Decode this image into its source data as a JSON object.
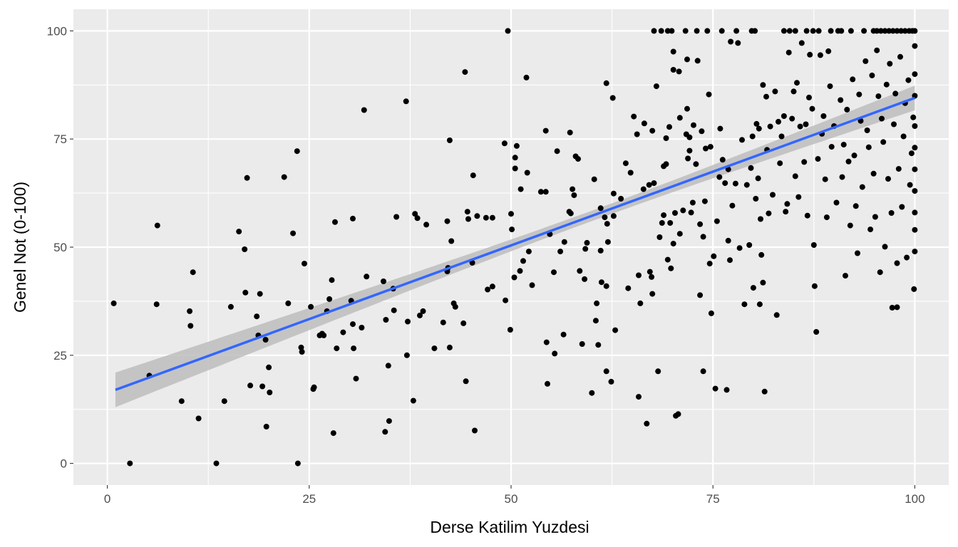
{
  "chart_data": {
    "type": "scatter",
    "title": "",
    "xlabel": "Derse Katilim Yuzdesi",
    "ylabel": "Genel Not (0-100)",
    "xlim": [
      -4.2,
      104.2
    ],
    "ylim": [
      -5,
      105
    ],
    "xticks": [
      0,
      25,
      50,
      75,
      100
    ],
    "yticks": [
      0,
      25,
      50,
      75,
      100
    ],
    "x_tick_labels": [
      "0",
      "25",
      "50",
      "75",
      "100"
    ],
    "y_tick_labels": [
      "0",
      "25",
      "50",
      "75",
      "100"
    ],
    "grid": true,
    "legend": "none",
    "colors": {
      "panel": "#ebebeb",
      "grid": "#ffffff",
      "points": "#000000",
      "trend": "#3366ff",
      "ribbon": "#bdbdbd"
    },
    "trend": {
      "method": "linear",
      "start": [
        1,
        17
      ],
      "end": [
        100,
        84.5
      ],
      "ci_halfwidth_ends": 4.0,
      "ci_halfwidth_center": 1.2,
      "ci_center_x": 60
    },
    "points": [
      [
        0.8,
        37
      ],
      [
        2.8,
        0
      ],
      [
        5.2,
        20.3
      ],
      [
        6.2,
        55
      ],
      [
        6.1,
        36.8
      ],
      [
        9.2,
        14.4
      ],
      [
        10.2,
        35.2
      ],
      [
        10.3,
        31.8
      ],
      [
        10.6,
        44.2
      ],
      [
        11.3,
        10.4
      ],
      [
        13.5,
        0
      ],
      [
        14.5,
        14.4
      ],
      [
        15.3,
        36.2
      ],
      [
        16.3,
        53.6
      ],
      [
        17,
        49.5
      ],
      [
        17.1,
        39.5
      ],
      [
        17.3,
        66
      ],
      [
        17.7,
        18
      ],
      [
        18.5,
        34
      ],
      [
        18.9,
        39.2
      ],
      [
        18.7,
        29.6
      ],
      [
        19.2,
        17.8
      ],
      [
        19.6,
        28.6
      ],
      [
        19.7,
        8.5
      ],
      [
        20,
        22.2
      ],
      [
        20.1,
        16.4
      ],
      [
        21.9,
        66.2
      ],
      [
        22.4,
        37
      ],
      [
        23,
        53.2
      ],
      [
        23.5,
        72.2
      ],
      [
        23.6,
        0
      ],
      [
        24,
        26.8
      ],
      [
        24.1,
        25.8
      ],
      [
        24.4,
        46.2
      ],
      [
        25.2,
        36.2
      ],
      [
        25.5,
        17.2
      ],
      [
        25.6,
        17.6
      ],
      [
        26.3,
        29.6
      ],
      [
        26.6,
        30
      ],
      [
        26.8,
        29.6
      ],
      [
        27.2,
        35.2
      ],
      [
        27.5,
        38
      ],
      [
        27.8,
        42.4
      ],
      [
        28,
        7
      ],
      [
        28.4,
        26.6
      ],
      [
        28.2,
        55.8
      ],
      [
        29.2,
        30.3
      ],
      [
        30.2,
        37.6
      ],
      [
        30.4,
        56.6
      ],
      [
        30.5,
        26.6
      ],
      [
        30.4,
        32.2
      ],
      [
        30.8,
        19.6
      ],
      [
        31.5,
        31.4
      ],
      [
        31.8,
        81.7
      ],
      [
        32.1,
        43.2
      ],
      [
        34.2,
        42.1
      ],
      [
        34.4,
        7.3
      ],
      [
        34.5,
        33.2
      ],
      [
        34.8,
        22.6
      ],
      [
        34.9,
        9.8
      ],
      [
        35.4,
        40.4
      ],
      [
        35.5,
        35.4
      ],
      [
        35.8,
        57
      ],
      [
        37,
        83.7
      ],
      [
        37.1,
        25
      ],
      [
        37.2,
        32.8
      ],
      [
        37.9,
        14.5
      ],
      [
        38.1,
        57.7
      ],
      [
        38.4,
        56.7
      ],
      [
        38.7,
        34.2
      ],
      [
        39.1,
        35.2
      ],
      [
        39.5,
        55.2
      ],
      [
        40.5,
        26.6
      ],
      [
        41.6,
        32.6
      ],
      [
        42.1,
        56
      ],
      [
        42.1,
        44.4
      ],
      [
        42.2,
        45.2
      ],
      [
        42.4,
        74.7
      ],
      [
        42.4,
        26.8
      ],
      [
        42.6,
        51.4
      ],
      [
        42.9,
        37
      ],
      [
        43.1,
        36.2
      ],
      [
        44.1,
        32.4
      ],
      [
        44.3,
        90.5
      ],
      [
        44.4,
        19
      ],
      [
        44.6,
        58.2
      ],
      [
        44.7,
        56.5
      ],
      [
        45.2,
        46.4
      ],
      [
        45.3,
        66.6
      ],
      [
        45.5,
        7.6
      ],
      [
        45.8,
        57.2
      ],
      [
        46.9,
        56.8
      ],
      [
        47.1,
        40.2
      ],
      [
        47.7,
        56.8
      ],
      [
        47.7,
        40.9
      ],
      [
        49.3,
        37.7
      ],
      [
        49.2,
        74
      ],
      [
        49.6,
        100
      ],
      [
        49.9,
        30.9
      ],
      [
        50.1,
        54.1
      ],
      [
        50,
        57.7
      ],
      [
        50.4,
        43
      ],
      [
        50.5,
        68.2
      ],
      [
        50.5,
        70.7
      ],
      [
        50.7,
        73.4
      ],
      [
        51.1,
        44.5
      ],
      [
        51.2,
        63.4
      ],
      [
        51.5,
        46.8
      ],
      [
        51.9,
        89.2
      ],
      [
        52,
        67.2
      ],
      [
        52.2,
        49
      ],
      [
        52.6,
        41.2
      ],
      [
        53.7,
        62.8
      ],
      [
        54.3,
        76.9
      ],
      [
        54.3,
        62.8
      ],
      [
        54.5,
        18.4
      ],
      [
        54.4,
        28
      ],
      [
        54.8,
        53
      ],
      [
        55.3,
        44.2
      ],
      [
        55.4,
        25.4
      ],
      [
        55.7,
        72.2
      ],
      [
        56.1,
        49
      ],
      [
        56.6,
        51.2
      ],
      [
        56.5,
        29.8
      ],
      [
        57.2,
        58.2
      ],
      [
        57.3,
        76.5
      ],
      [
        57.4,
        57.8
      ],
      [
        57.6,
        63.4
      ],
      [
        57.8,
        62
      ],
      [
        58,
        71
      ],
      [
        58.3,
        70.4
      ],
      [
        58.5,
        44.5
      ],
      [
        58.8,
        27.6
      ],
      [
        59.1,
        42.6
      ],
      [
        59.2,
        49.6
      ],
      [
        59.4,
        51
      ],
      [
        60,
        16.3
      ],
      [
        60.3,
        65.7
      ],
      [
        60.5,
        33
      ],
      [
        60.6,
        37
      ],
      [
        60.8,
        27.4
      ],
      [
        61.2,
        41.9
      ],
      [
        61.1,
        59
      ],
      [
        61.1,
        49.2
      ],
      [
        61.6,
        56.9
      ],
      [
        61.8,
        21.3
      ],
      [
        61.8,
        41
      ],
      [
        61.9,
        55.4
      ],
      [
        61.8,
        87.9
      ],
      [
        62,
        51.2
      ],
      [
        62.4,
        18.9
      ],
      [
        62.6,
        84.5
      ],
      [
        62.7,
        62.4
      ],
      [
        62.7,
        57.2
      ],
      [
        62.9,
        30.8
      ],
      [
        63.6,
        61.2
      ],
      [
        64.2,
        69.4
      ],
      [
        64.5,
        40.5
      ],
      [
        64.8,
        67.2
      ],
      [
        65.2,
        80.2
      ],
      [
        65.6,
        76.1
      ],
      [
        65.8,
        43.5
      ],
      [
        65.8,
        15.4
      ],
      [
        66,
        37
      ],
      [
        66.5,
        78.6
      ],
      [
        66.4,
        63.4
      ],
      [
        66.8,
        9.2
      ],
      [
        67.1,
        64.4
      ],
      [
        67.2,
        44.3
      ],
      [
        67.4,
        43.1
      ],
      [
        67.5,
        39.2
      ],
      [
        67.5,
        76.9
      ],
      [
        67.7,
        100
      ],
      [
        67.7,
        64.8
      ],
      [
        68,
        87.2
      ],
      [
        68.2,
        21.3
      ],
      [
        68.4,
        52.3
      ],
      [
        68.7,
        55.6
      ],
      [
        68.9,
        57.4
      ],
      [
        68.9,
        68.7
      ],
      [
        69.2,
        75.2
      ],
      [
        69.2,
        69.2
      ],
      [
        69.4,
        47.1
      ],
      [
        69.6,
        77.8
      ],
      [
        69.4,
        100
      ],
      [
        69.7,
        55.6
      ],
      [
        69.8,
        45.1
      ],
      [
        70.1,
        50.8
      ],
      [
        70.1,
        91
      ],
      [
        70.1,
        95.2
      ],
      [
        70.3,
        57.9
      ],
      [
        70.4,
        11
      ],
      [
        70.7,
        11.4
      ],
      [
        70.8,
        90.6
      ],
      [
        70.9,
        79.9
      ],
      [
        70.9,
        53.1
      ],
      [
        71.3,
        58.5
      ],
      [
        71.6,
        100
      ],
      [
        71.7,
        76.1
      ],
      [
        71.8,
        93.4
      ],
      [
        71.8,
        82
      ],
      [
        71.9,
        70.5
      ],
      [
        72.1,
        75.4
      ],
      [
        72.1,
        72.3
      ],
      [
        72.3,
        58
      ],
      [
        72.5,
        60.3
      ],
      [
        72.6,
        78.2
      ],
      [
        72.9,
        69.2
      ],
      [
        73,
        100
      ],
      [
        73.1,
        93.1
      ],
      [
        73.4,
        38.9
      ],
      [
        73.4,
        55.3
      ],
      [
        73.8,
        21.3
      ],
      [
        73.8,
        52.4
      ],
      [
        73.6,
        76.8
      ],
      [
        74,
        60.6
      ],
      [
        74.1,
        72.8
      ],
      [
        74.3,
        100
      ],
      [
        74.5,
        85.3
      ],
      [
        74.7,
        73.2
      ],
      [
        74.6,
        46.2
      ],
      [
        74.8,
        34.7
      ],
      [
        75.1,
        47.9
      ],
      [
        75.3,
        17.3
      ],
      [
        75.5,
        56
      ],
      [
        75.8,
        66.2
      ],
      [
        75.9,
        77.4
      ],
      [
        76.2,
        70.2
      ],
      [
        76.5,
        64.8
      ],
      [
        76.7,
        17
      ],
      [
        76.9,
        51.5
      ],
      [
        76.9,
        68
      ],
      [
        77.1,
        47
      ],
      [
        77.2,
        97.5
      ],
      [
        77.4,
        59.6
      ],
      [
        77.8,
        64.7
      ],
      [
        77.9,
        100
      ],
      [
        78.1,
        97.2
      ],
      [
        78.3,
        49.8
      ],
      [
        78.6,
        74.8
      ],
      [
        78.9,
        36.8
      ],
      [
        79.2,
        64.4
      ],
      [
        79.5,
        50.5
      ],
      [
        79.7,
        68.3
      ],
      [
        79.9,
        75.6
      ],
      [
        80,
        40.6
      ],
      [
        80.3,
        61.2
      ],
      [
        80.4,
        78.5
      ],
      [
        80.6,
        65.9
      ],
      [
        80.9,
        56.5
      ],
      [
        80.7,
        77.4
      ],
      [
        80.8,
        36.8
      ],
      [
        81,
        48.2
      ],
      [
        81.2,
        41.8
      ],
      [
        81.2,
        87.5
      ],
      [
        81.4,
        16.6
      ],
      [
        81.6,
        84.8
      ],
      [
        81.7,
        72.5
      ],
      [
        81.9,
        57.8
      ],
      [
        82.1,
        77.9
      ],
      [
        82.4,
        62.1
      ],
      [
        82.7,
        86
      ],
      [
        82.9,
        34.3
      ],
      [
        83.1,
        79
      ],
      [
        83.3,
        69.4
      ],
      [
        83.5,
        75.6
      ],
      [
        83.8,
        80.3
      ],
      [
        84,
        58.2
      ],
      [
        84.2,
        60
      ],
      [
        84.4,
        95
      ],
      [
        84.5,
        100
      ],
      [
        84.8,
        79.7
      ],
      [
        85,
        86
      ],
      [
        85.2,
        66.4
      ],
      [
        85.4,
        88
      ],
      [
        85.6,
        61.6
      ],
      [
        85.8,
        77.9
      ],
      [
        86,
        97.2
      ],
      [
        86.3,
        69.7
      ],
      [
        86.5,
        78.4
      ],
      [
        86.7,
        57.3
      ],
      [
        86.9,
        84.6
      ],
      [
        87,
        94.5
      ],
      [
        87.3,
        82
      ],
      [
        87.5,
        50.5
      ],
      [
        87.6,
        41
      ],
      [
        87.8,
        30.4
      ],
      [
        88,
        70.4
      ],
      [
        88.3,
        94.4
      ],
      [
        88.5,
        76.2
      ],
      [
        88.7,
        80.3
      ],
      [
        88.9,
        65.7
      ],
      [
        89.1,
        56.9
      ],
      [
        89.3,
        95.3
      ],
      [
        89.5,
        87.2
      ],
      [
        89.7,
        73.2
      ],
      [
        90,
        78
      ],
      [
        90.3,
        60.3
      ],
      [
        90.5,
        100
      ],
      [
        90.8,
        84
      ],
      [
        91,
        66.2
      ],
      [
        91.2,
        73.7
      ],
      [
        91.4,
        43.4
      ],
      [
        91.6,
        81.8
      ],
      [
        91.8,
        69.8
      ],
      [
        92,
        55
      ],
      [
        92.3,
        88.8
      ],
      [
        92.5,
        71.2
      ],
      [
        92.7,
        59.5
      ],
      [
        92.9,
        48.6
      ],
      [
        93.1,
        85.3
      ],
      [
        93.3,
        79.2
      ],
      [
        93.5,
        63.9
      ],
      [
        93.7,
        100
      ],
      [
        93.9,
        93
      ],
      [
        94.1,
        77
      ],
      [
        94.3,
        73.1
      ],
      [
        94.5,
        54.1
      ],
      [
        94.7,
        89.7
      ],
      [
        94.9,
        67
      ],
      [
        95.1,
        57
      ],
      [
        95.3,
        95.5
      ],
      [
        95.5,
        84.9
      ],
      [
        95.7,
        44.2
      ],
      [
        95.9,
        79.7
      ],
      [
        96.1,
        74.3
      ],
      [
        96.3,
        50.1
      ],
      [
        96.5,
        87.6
      ],
      [
        96.7,
        65.8
      ],
      [
        96.9,
        92.4
      ],
      [
        97.1,
        57.9
      ],
      [
        97.2,
        36
      ],
      [
        97.4,
        78.4
      ],
      [
        97.6,
        85.5
      ],
      [
        97.8,
        46.3
      ],
      [
        97.8,
        36.1
      ],
      [
        98,
        68.1
      ],
      [
        98.2,
        94
      ],
      [
        98.4,
        59.3
      ],
      [
        98.6,
        75.6
      ],
      [
        98.8,
        83.3
      ],
      [
        99,
        47.6
      ],
      [
        99.2,
        88.6
      ],
      [
        99.4,
        64.4
      ],
      [
        99.6,
        71.7
      ],
      [
        99.8,
        80
      ],
      [
        99.9,
        40.3
      ],
      [
        100,
        96.5
      ],
      [
        100,
        90
      ],
      [
        100,
        85
      ],
      [
        100,
        78
      ],
      [
        100,
        73
      ],
      [
        100,
        68
      ],
      [
        100,
        63
      ],
      [
        100,
        58
      ],
      [
        100,
        54
      ],
      [
        100,
        49
      ],
      [
        100,
        100
      ],
      [
        99.7,
        100
      ],
      [
        99.3,
        100
      ],
      [
        98.8,
        100
      ],
      [
        98.3,
        100
      ],
      [
        97.8,
        100
      ],
      [
        97.3,
        100
      ],
      [
        96.8,
        100
      ],
      [
        96.3,
        100
      ],
      [
        95.8,
        100
      ],
      [
        95.3,
        100
      ],
      [
        94.9,
        100
      ],
      [
        92.1,
        100
      ],
      [
        90.9,
        100
      ],
      [
        89.6,
        100
      ],
      [
        88.1,
        100
      ],
      [
        87.4,
        100
      ],
      [
        86.6,
        100
      ],
      [
        85.2,
        100
      ],
      [
        83.8,
        100
      ],
      [
        80.2,
        100
      ],
      [
        79.8,
        100
      ],
      [
        76.1,
        100
      ],
      [
        69.9,
        100
      ],
      [
        68.6,
        100
      ]
    ]
  }
}
